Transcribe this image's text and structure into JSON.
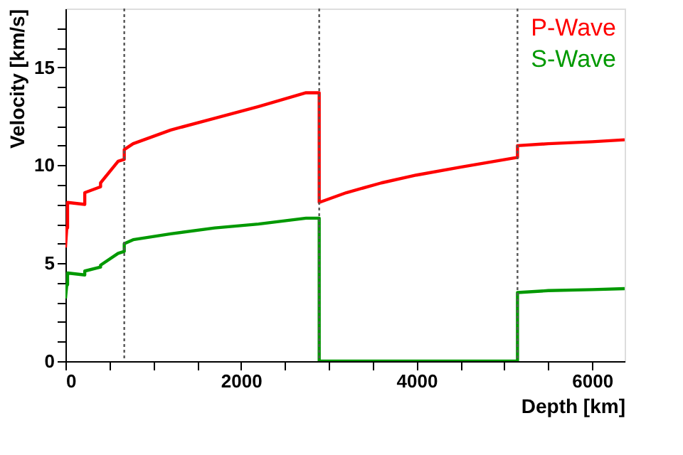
{
  "chart_data": {
    "type": "line",
    "xlabel": "Depth [km]",
    "ylabel": "Velocity [km/s]",
    "xlim": [
      0,
      6371
    ],
    "ylim": [
      0,
      18
    ],
    "xticks": [
      0,
      {
        "value": 500,
        "label": null
      },
      {
        "value": 1000,
        "label": null
      },
      {
        "value": 1500,
        "label": null
      },
      2000,
      {
        "value": 2500,
        "label": null
      },
      {
        "value": 3000,
        "label": null
      },
      {
        "value": 3500,
        "label": null
      },
      4000,
      {
        "value": 4500,
        "label": null
      },
      {
        "value": 5000,
        "label": null
      },
      {
        "value": 5500,
        "label": null
      },
      6000
    ],
    "yticks": [
      0,
      {
        "value": 1,
        "label": null
      },
      {
        "value": 2,
        "label": null
      },
      {
        "value": 3,
        "label": null
      },
      {
        "value": 4,
        "label": null
      },
      5,
      {
        "value": 6,
        "label": null
      },
      {
        "value": 7,
        "label": null
      },
      {
        "value": 8,
        "label": null
      },
      {
        "value": 9,
        "label": null
      },
      10,
      {
        "value": 11,
        "label": null
      },
      {
        "value": 12,
        "label": null
      },
      {
        "value": 13,
        "label": null
      },
      {
        "value": 14,
        "label": null
      },
      15,
      {
        "value": 16,
        "label": null
      },
      {
        "value": 17,
        "label": null
      }
    ],
    "grid": false,
    "legend": "top right",
    "marker": "none",
    "line_style": "solid",
    "ref_lines": [
      {
        "axis": "x",
        "value": 670,
        "color": "#555555",
        "line_style": "dotted"
      },
      {
        "axis": "x",
        "value": 2891,
        "color": "#555555",
        "line_style": "dotted"
      },
      {
        "axis": "x",
        "value": 5150,
        "color": "#555555",
        "line_style": "dotted"
      }
    ],
    "series": [
      {
        "name": "P-Wave",
        "color": "#ff0000",
        "x": [
          0,
          15,
          24,
          24,
          220,
          220,
          400,
          400,
          600,
          670,
          670,
          771,
          1200,
          1700,
          2200,
          2741,
          2891,
          2891,
          3200,
          3600,
          4000,
          4500,
          5150,
          5150,
          5500,
          6000,
          6371
        ],
        "values": [
          5.8,
          6.8,
          6.8,
          8.1,
          8.0,
          8.6,
          8.9,
          9.1,
          10.2,
          10.3,
          10.8,
          11.1,
          11.8,
          12.4,
          13.0,
          13.7,
          13.7,
          8.1,
          8.6,
          9.1,
          9.5,
          9.9,
          10.4,
          11.0,
          11.1,
          11.2,
          11.3
        ]
      },
      {
        "name": "S-Wave",
        "color": "#009900",
        "x": [
          0,
          15,
          24,
          24,
          220,
          220,
          400,
          400,
          600,
          670,
          670,
          771,
          1200,
          1700,
          2200,
          2741,
          2891,
          2891,
          5150,
          5150,
          5500,
          6000,
          6371
        ],
        "values": [
          3.2,
          3.9,
          3.9,
          4.5,
          4.4,
          4.6,
          4.8,
          4.9,
          5.5,
          5.6,
          6.0,
          6.2,
          6.5,
          6.8,
          7.0,
          7.3,
          7.3,
          0,
          0,
          3.5,
          3.6,
          3.65,
          3.7
        ]
      }
    ]
  }
}
